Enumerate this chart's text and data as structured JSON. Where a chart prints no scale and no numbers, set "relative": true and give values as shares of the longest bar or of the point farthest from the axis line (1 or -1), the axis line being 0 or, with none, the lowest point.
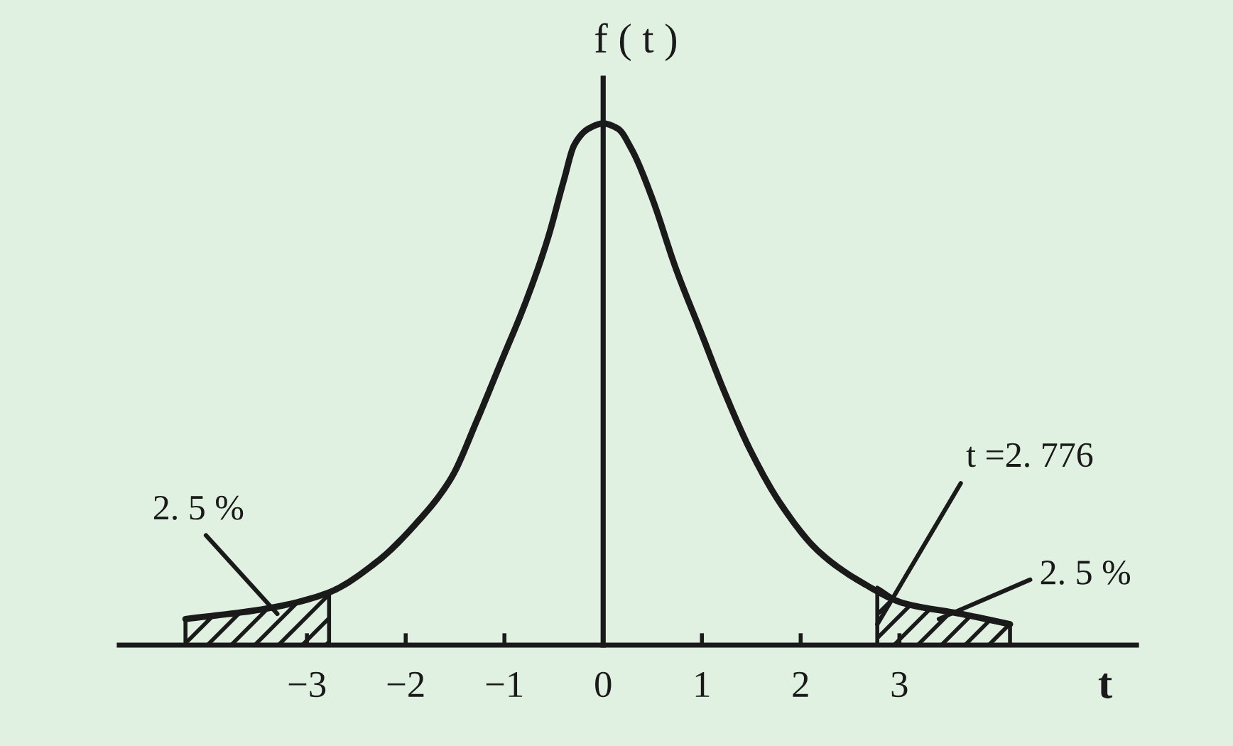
{
  "chart_data": {
    "type": "line",
    "xlabel": "t",
    "ylabel": "f ( t )",
    "relative": true,
    "x": [
      -4.23,
      -3.41,
      -2.79,
      -2.29,
      -1.91,
      -1.54,
      -1.28,
      -1.04,
      -0.78,
      -0.56,
      -0.4,
      -0.29,
      -0.15,
      0,
      0.15,
      0.29,
      0.49,
      0.74,
      0.99,
      1.24,
      1.5,
      1.8,
      2.18,
      2.62,
      3.05,
      3.62,
      4.12
    ],
    "series": [
      {
        "color": "#1a1a1a",
        "values": [
          0.05,
          0.07,
          0.1,
          0.16,
          0.23,
          0.32,
          0.43,
          0.54,
          0.66,
          0.78,
          0.89,
          0.96,
          0.99,
          1,
          0.99,
          0.95,
          0.86,
          0.72,
          0.6,
          0.48,
          0.37,
          0.27,
          0.18,
          0.12,
          0.08,
          0.06,
          0.04
        ]
      },
      {
        "type": "area",
        "color": "#1a1a1a",
        "x": [
          -4.23,
          -3.41,
          -2.776
        ],
        "values": [
          0.05,
          0.07,
          0.1
        ]
      },
      {
        "type": "area",
        "color": "#1a1a1a",
        "x": [
          2.776,
          3.05,
          3.62,
          4.12
        ],
        "values": [
          0.11,
          0.08,
          0.06,
          0.04
        ]
      }
    ],
    "xlim": [
      -4.9,
      5.4
    ],
    "xticks": [
      {
        "value": -3,
        "label": "−3"
      },
      {
        "value": -2,
        "label": "−2"
      },
      {
        "value": -1,
        "label": "−1"
      },
      0,
      1,
      2,
      3
    ],
    "tick_labels": "x",
    "annotations": [
      {
        "text": "2. 5 %",
        "x": -3.3,
        "y": 0.06
      },
      {
        "text": "t =2. 776",
        "x": 2.776,
        "y": 0.04
      },
      {
        "text": "2. 5 %",
        "x": 3.4,
        "y": 0.05
      }
    ]
  }
}
